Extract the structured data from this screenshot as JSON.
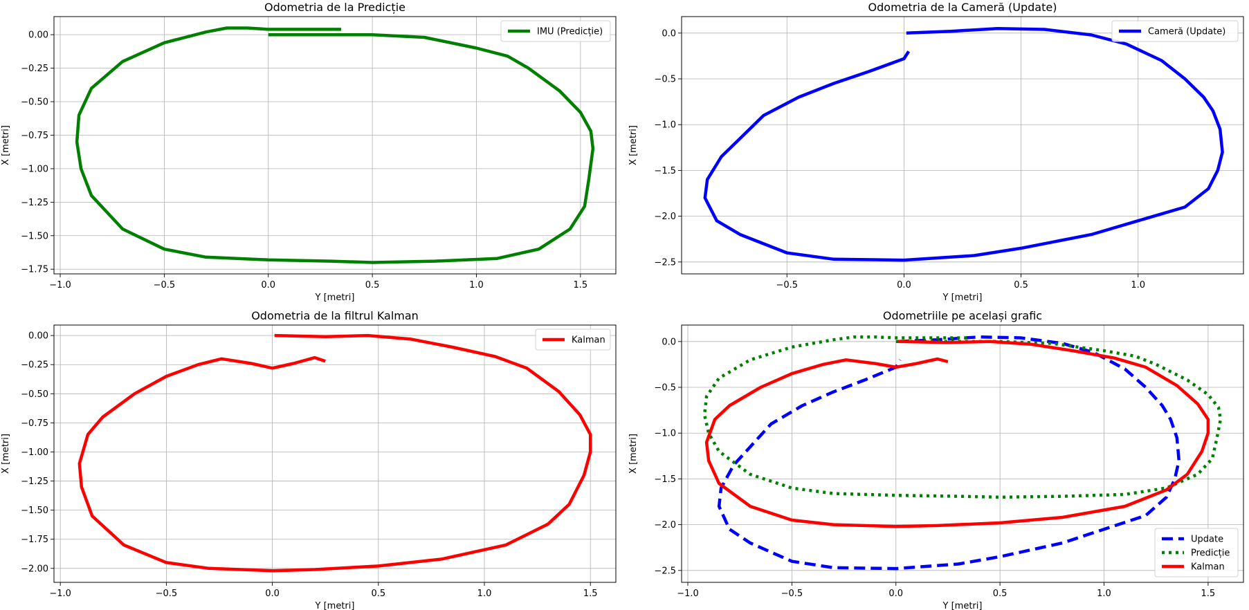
{
  "chart_data": [
    {
      "type": "line",
      "title": "Odometria de la Predicție",
      "xlabel": "Y [metri]",
      "ylabel": "X [metri]",
      "xlim": [
        -1.03,
        1.67
      ],
      "ylim": [
        -1.785,
        0.135
      ],
      "xticks": [
        -1.0,
        -0.5,
        0.0,
        0.5,
        1.0,
        1.5
      ],
      "xtick_labels": [
        "−1.0",
        "−0.5",
        "0.0",
        "0.5",
        "1.0",
        "1.5"
      ],
      "yticks": [
        0.0,
        -0.25,
        -0.5,
        -0.75,
        -1.0,
        -1.25,
        -1.5,
        -1.75
      ],
      "ytick_labels": [
        "0.00",
        "−0.25",
        "−0.50",
        "−0.75",
        "−1.00",
        "−1.25",
        "−1.50",
        "−1.75"
      ],
      "grid": true,
      "legend": "upper right",
      "series": [
        {
          "name": "IMU (Predicție)",
          "color": "#008000",
          "dash": "solid",
          "x": [
            0.0,
            0.25,
            0.5,
            0.75,
            1.0,
            1.15,
            1.25,
            1.4,
            1.5,
            1.55,
            1.56,
            1.54,
            1.52,
            1.45,
            1.3,
            1.1,
            0.8,
            0.5,
            0.3,
            0.0,
            -0.3,
            -0.5,
            -0.7,
            -0.85,
            -0.9,
            -0.92,
            -0.91,
            -0.85,
            -0.7,
            -0.5,
            -0.3,
            -0.2,
            -0.1,
            0.0,
            0.2,
            0.35
          ],
          "y": [
            0.0,
            0.0,
            0.0,
            -0.02,
            -0.1,
            -0.16,
            -0.25,
            -0.42,
            -0.58,
            -0.72,
            -0.85,
            -1.08,
            -1.28,
            -1.45,
            -1.6,
            -1.67,
            -1.69,
            -1.7,
            -1.69,
            -1.68,
            -1.66,
            -1.6,
            -1.45,
            -1.2,
            -1.0,
            -0.8,
            -0.6,
            -0.4,
            -0.2,
            -0.06,
            0.02,
            0.05,
            0.05,
            0.04,
            0.04,
            0.04
          ]
        }
      ]
    },
    {
      "type": "line",
      "title": "Odometria de la Cameră (Update)",
      "xlabel": "Y [metri]",
      "ylabel": "X [metri]",
      "xlim": [
        -0.95,
        1.45
      ],
      "ylim": [
        -2.63,
        0.18
      ],
      "xticks": [
        -0.5,
        0.0,
        0.5,
        1.0
      ],
      "xtick_labels": [
        "−0.5",
        "0.0",
        "0.5",
        "1.0"
      ],
      "yticks": [
        0.0,
        -0.5,
        -1.0,
        -1.5,
        -2.0,
        -2.5
      ],
      "ytick_labels": [
        "0.0",
        "−0.5",
        "−1.0",
        "−1.5",
        "−2.0",
        "−2.5"
      ],
      "grid": true,
      "legend": "upper right",
      "series": [
        {
          "name": "Cameră (Update)",
          "color": "#0000ff",
          "dash": "solid",
          "x": [
            0.01,
            0.2,
            0.4,
            0.6,
            0.8,
            0.95,
            1.1,
            1.2,
            1.28,
            1.32,
            1.35,
            1.36,
            1.34,
            1.3,
            1.2,
            1.0,
            0.8,
            0.5,
            0.3,
            0.0,
            -0.3,
            -0.5,
            -0.7,
            -0.8,
            -0.85,
            -0.84,
            -0.78,
            -0.7,
            -0.6,
            -0.45,
            -0.3,
            -0.15,
            0.0,
            0.02
          ],
          "y": [
            0.0,
            0.02,
            0.05,
            0.04,
            -0.02,
            -0.12,
            -0.3,
            -0.5,
            -0.7,
            -0.85,
            -1.05,
            -1.3,
            -1.5,
            -1.7,
            -1.9,
            -2.05,
            -2.2,
            -2.35,
            -2.43,
            -2.48,
            -2.47,
            -2.4,
            -2.2,
            -2.05,
            -1.8,
            -1.6,
            -1.35,
            -1.15,
            -0.9,
            -0.7,
            -0.55,
            -0.42,
            -0.28,
            -0.2
          ]
        }
      ]
    },
    {
      "type": "line",
      "title": "Odometria de la filtrul Kalman",
      "xlabel": "Y [metri]",
      "ylabel": "X [metri]",
      "xlim": [
        -1.03,
        1.62
      ],
      "ylim": [
        -2.12,
        0.09
      ],
      "xticks": [
        -1.0,
        -0.5,
        0.0,
        0.5,
        1.0,
        1.5
      ],
      "xtick_labels": [
        "−1.0",
        "−0.5",
        "0.0",
        "0.5",
        "1.0",
        "1.5"
      ],
      "yticks": [
        0.0,
        -0.25,
        -0.5,
        -0.75,
        -1.0,
        -1.25,
        -1.5,
        -1.75,
        -2.0
      ],
      "ytick_labels": [
        "0.00",
        "−0.25",
        "−0.50",
        "−0.75",
        "−1.00",
        "−1.25",
        "−1.50",
        "−1.75",
        "−2.00"
      ],
      "grid": true,
      "legend": "upper right",
      "series": [
        {
          "name": "Kalman",
          "color": "#ff0000",
          "dash": "solid",
          "x": [
            0.01,
            0.25,
            0.45,
            0.65,
            0.85,
            1.05,
            1.2,
            1.35,
            1.45,
            1.5,
            1.5,
            1.47,
            1.4,
            1.3,
            1.1,
            0.8,
            0.5,
            0.2,
            0.0,
            -0.3,
            -0.5,
            -0.7,
            -0.85,
            -0.9,
            -0.91,
            -0.87,
            -0.8,
            -0.65,
            -0.5,
            -0.35,
            -0.24,
            -0.1,
            0.0,
            0.1,
            0.2,
            0.25
          ],
          "y": [
            0.0,
            -0.01,
            0.0,
            -0.03,
            -0.1,
            -0.18,
            -0.28,
            -0.48,
            -0.68,
            -0.85,
            -1.0,
            -1.2,
            -1.45,
            -1.62,
            -1.8,
            -1.92,
            -1.98,
            -2.01,
            -2.02,
            -2.0,
            -1.95,
            -1.8,
            -1.55,
            -1.3,
            -1.1,
            -0.85,
            -0.7,
            -0.5,
            -0.35,
            -0.25,
            -0.2,
            -0.24,
            -0.28,
            -0.24,
            -0.19,
            -0.22
          ]
        }
      ]
    },
    {
      "type": "line",
      "title": "Odometriile pe același grafic",
      "xlabel": "Y [metri]",
      "ylabel": "X [metri]",
      "xlim": [
        -1.03,
        1.67
      ],
      "ylim": [
        -2.63,
        0.18
      ],
      "xticks": [
        -1.0,
        -0.5,
        0.0,
        0.5,
        1.0,
        1.5
      ],
      "xtick_labels": [
        "−1.0",
        "−0.5",
        "0.0",
        "0.5",
        "1.0",
        "1.5"
      ],
      "yticks": [
        0.0,
        -0.5,
        -1.0,
        -1.5,
        -2.0,
        -2.5
      ],
      "ytick_labels": [
        "0.0",
        "−0.5",
        "−1.0",
        "−1.5",
        "−2.0",
        "−2.5"
      ],
      "grid": true,
      "legend": "lower right",
      "series": [
        {
          "name": "Update",
          "color": "#0000ff",
          "dash": "dashed",
          "x": [
            0.01,
            0.2,
            0.4,
            0.6,
            0.8,
            0.95,
            1.1,
            1.2,
            1.28,
            1.32,
            1.35,
            1.36,
            1.34,
            1.3,
            1.2,
            1.0,
            0.8,
            0.5,
            0.3,
            0.0,
            -0.3,
            -0.5,
            -0.7,
            -0.8,
            -0.85,
            -0.84,
            -0.78,
            -0.7,
            -0.6,
            -0.45,
            -0.3,
            -0.15,
            0.0,
            0.02
          ],
          "y": [
            0.0,
            0.02,
            0.05,
            0.04,
            -0.02,
            -0.12,
            -0.3,
            -0.5,
            -0.7,
            -0.85,
            -1.05,
            -1.3,
            -1.5,
            -1.7,
            -1.9,
            -2.05,
            -2.2,
            -2.35,
            -2.43,
            -2.48,
            -2.47,
            -2.4,
            -2.2,
            -2.05,
            -1.8,
            -1.6,
            -1.35,
            -1.15,
            -0.9,
            -0.7,
            -0.55,
            -0.42,
            -0.28,
            -0.2
          ]
        },
        {
          "name": "Predicție",
          "color": "#008000",
          "dash": "dotted",
          "x": [
            0.0,
            0.25,
            0.5,
            0.75,
            1.0,
            1.15,
            1.25,
            1.4,
            1.5,
            1.55,
            1.56,
            1.54,
            1.52,
            1.45,
            1.3,
            1.1,
            0.8,
            0.5,
            0.3,
            0.0,
            -0.3,
            -0.5,
            -0.7,
            -0.85,
            -0.9,
            -0.92,
            -0.91,
            -0.85,
            -0.7,
            -0.5,
            -0.3,
            -0.2,
            -0.1,
            0.0,
            0.2,
            0.35
          ],
          "y": [
            0.0,
            0.0,
            0.0,
            -0.02,
            -0.1,
            -0.16,
            -0.25,
            -0.42,
            -0.58,
            -0.72,
            -0.85,
            -1.08,
            -1.28,
            -1.45,
            -1.6,
            -1.67,
            -1.69,
            -1.7,
            -1.69,
            -1.68,
            -1.66,
            -1.6,
            -1.45,
            -1.2,
            -1.0,
            -0.8,
            -0.6,
            -0.4,
            -0.2,
            -0.06,
            0.02,
            0.05,
            0.05,
            0.04,
            0.04,
            0.04
          ]
        },
        {
          "name": "Kalman",
          "color": "#ff0000",
          "dash": "solid",
          "x": [
            0.01,
            0.25,
            0.45,
            0.65,
            0.85,
            1.05,
            1.2,
            1.35,
            1.45,
            1.5,
            1.5,
            1.47,
            1.4,
            1.3,
            1.1,
            0.8,
            0.5,
            0.2,
            0.0,
            -0.3,
            -0.5,
            -0.7,
            -0.85,
            -0.9,
            -0.91,
            -0.87,
            -0.8,
            -0.65,
            -0.5,
            -0.35,
            -0.24,
            -0.1,
            0.0,
            0.1,
            0.2,
            0.25
          ],
          "y": [
            0.0,
            -0.01,
            0.0,
            -0.03,
            -0.1,
            -0.18,
            -0.28,
            -0.48,
            -0.68,
            -0.85,
            -1.0,
            -1.2,
            -1.45,
            -1.62,
            -1.8,
            -1.92,
            -1.98,
            -2.01,
            -2.02,
            -2.0,
            -1.95,
            -1.8,
            -1.55,
            -1.3,
            -1.1,
            -0.85,
            -0.7,
            -0.5,
            -0.35,
            -0.25,
            -0.2,
            -0.24,
            -0.28,
            -0.24,
            -0.19,
            -0.22
          ]
        }
      ]
    }
  ]
}
